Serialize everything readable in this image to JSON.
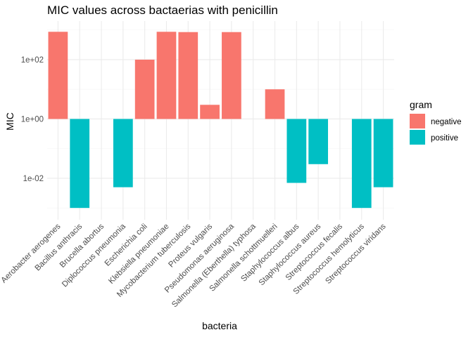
{
  "chart_data": {
    "type": "bar",
    "title": "MIC values across bactaerias with penicillin",
    "xlabel": "bacteria",
    "ylabel": "MIC",
    "y_scale": "log10",
    "ylim": [
      0.0004,
      2000
    ],
    "y_ticks": [
      {
        "value": 0.01,
        "label": "1e-02"
      },
      {
        "value": 1,
        "label": "1e+00"
      },
      {
        "value": 100,
        "label": "1e+02"
      }
    ],
    "grid": true,
    "legend": {
      "title": "gram",
      "position": "right",
      "entries": [
        {
          "name": "negative",
          "color": "#F8766D"
        },
        {
          "name": "positive",
          "color": "#00BFC4"
        }
      ]
    },
    "categories": [
      "Aerobacter aerogenes",
      "Bacillus anthracis",
      "Brucella abortus",
      "Diplococcus pneumonia",
      "Escherichia coli",
      "Klebsiella pneumoniae",
      "Mycobacterium tuberculosis",
      "Proteus vulgaris",
      "Pseudomonas aeruginosa",
      "Salmonella (Eberthella) typhosa",
      "Salmonella schottmuelleri",
      "Staphylococcus albus",
      "Staphylococcus aureus",
      "Streptococcus fecalis",
      "Streptococcus hemolyticus",
      "Streptococcus viridans"
    ],
    "series": [
      {
        "name": "negative",
        "color": "#F8766D",
        "values": [
          870,
          null,
          1,
          null,
          100,
          870,
          850,
          3,
          850,
          1,
          10,
          null,
          null,
          1,
          null,
          null
        ]
      },
      {
        "name": "positive",
        "color": "#00BFC4",
        "values": [
          null,
          0.001,
          null,
          0.005,
          null,
          null,
          null,
          null,
          null,
          null,
          null,
          0.007,
          0.03,
          null,
          0.001,
          0.005
        ]
      }
    ]
  }
}
